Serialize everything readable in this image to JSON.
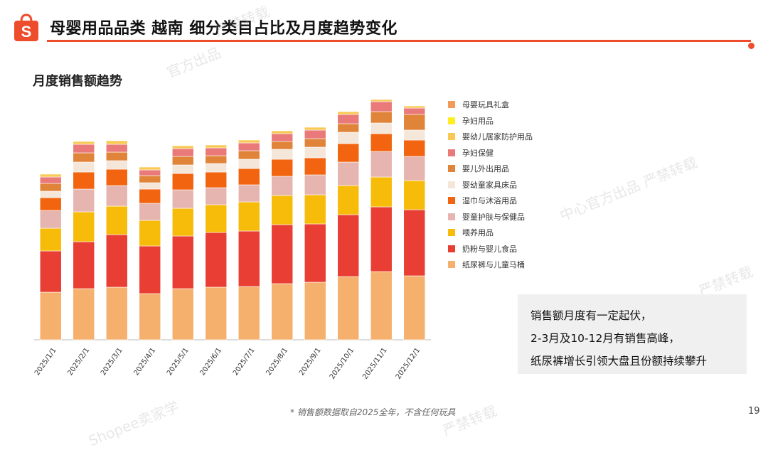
{
  "header": {
    "title": "母婴用品品类 越南 细分类目占比及月度趋势变化",
    "accent_color": "#ee4d2d",
    "logo_icon": "shopee-bag-icon"
  },
  "section": {
    "subtitle": "月度销售额趋势"
  },
  "chart_data": {
    "type": "bar",
    "stacked": true,
    "title": "月度销售额趋势",
    "xlabel": "",
    "ylabel": "",
    "y_axis_visible": false,
    "categories": [
      "2025/1/1",
      "2025/2/1",
      "2025/3/1",
      "2025/4/1",
      "2025/5/1",
      "2025/6/1",
      "2025/7/1",
      "2025/8/1",
      "2025/9/1",
      "2025/10/1",
      "2025/11/1",
      "2025/12/1"
    ],
    "ylim": [
      0,
      340
    ],
    "series": [
      {
        "name": "纸尿裤与儿童马桶",
        "color": "#f5b06e",
        "values": [
          67,
          72,
          74,
          65,
          72,
          74,
          75,
          79,
          81,
          89,
          96,
          90
        ]
      },
      {
        "name": "奶粉与婴儿食品",
        "color": "#e83e33",
        "values": [
          58,
          66,
          74,
          67,
          74,
          77,
          78,
          83,
          82,
          87,
          91,
          93
        ]
      },
      {
        "name": "喂养用品",
        "color": "#f7bb0a",
        "values": [
          32,
          42,
          40,
          36,
          39,
          39,
          41,
          41,
          41,
          41,
          42,
          41
        ]
      },
      {
        "name": "婴童护肤与保健品",
        "color": "#e6b5b0",
        "values": [
          25,
          32,
          29,
          24,
          26,
          24,
          24,
          27,
          28,
          33,
          36,
          34
        ]
      },
      {
        "name": "湿巾与沐浴用品",
        "color": "#f2640f",
        "values": [
          18,
          24,
          23,
          20,
          23,
          22,
          23,
          24,
          24,
          26,
          25,
          23
        ]
      },
      {
        "name": "婴幼童家具床品",
        "color": "#f5e6da",
        "values": [
          9,
          14,
          12,
          9,
          12,
          12,
          13,
          14,
          15,
          16,
          15,
          14
        ]
      },
      {
        "name": "婴儿外出用品",
        "color": "#e0843a",
        "values": [
          11,
          13,
          12,
          10,
          12,
          11,
          12,
          11,
          12,
          12,
          16,
          22
        ]
      },
      {
        "name": "孕妇保健",
        "color": "#ea7a7a",
        "values": [
          9,
          12,
          11,
          8,
          11,
          11,
          11,
          11,
          12,
          13,
          14,
          9
        ]
      },
      {
        "name": "婴幼儿居家防护用品",
        "color": "#f8c955",
        "values": [
          4,
          4,
          5,
          4,
          4,
          4,
          4,
          4,
          4,
          4,
          3,
          3
        ]
      },
      {
        "name": "孕妇用品",
        "color": "#ffee22",
        "values": [
          0,
          0,
          0,
          0,
          0,
          0,
          0,
          0,
          0,
          0,
          0,
          0
        ]
      },
      {
        "name": "母婴玩具礼盒",
        "color": "#f39a5a",
        "values": [
          0,
          0,
          0,
          0,
          0,
          0,
          0,
          0,
          0,
          0,
          0,
          0
        ]
      }
    ],
    "legend_order": [
      "母婴玩具礼盒",
      "孕妇用品",
      "婴幼儿居家防护用品",
      "孕妇保健",
      "婴儿外出用品",
      "婴幼童家具床品",
      "湿巾与沐浴用品",
      "婴童护肤与保健品",
      "喂养用品",
      "奶粉与婴儿食品",
      "纸尿裤与儿童马桶"
    ],
    "legend_position": "right"
  },
  "insight": {
    "lines": [
      "销售额月度有一定起伏，",
      "2-3月及10-12月有销售高峰，",
      "纸尿裤增长引领大盘且份额持续攀升"
    ]
  },
  "footer": {
    "note": "* 销售额数据取自2025全年，不含任何玩具",
    "page_number": "19"
  },
  "watermarks": [
    "严禁转载",
    "官方出品",
    "中心官方出品 严禁转载",
    "严禁转载",
    "Shopee卖家学",
    "严禁转载"
  ]
}
